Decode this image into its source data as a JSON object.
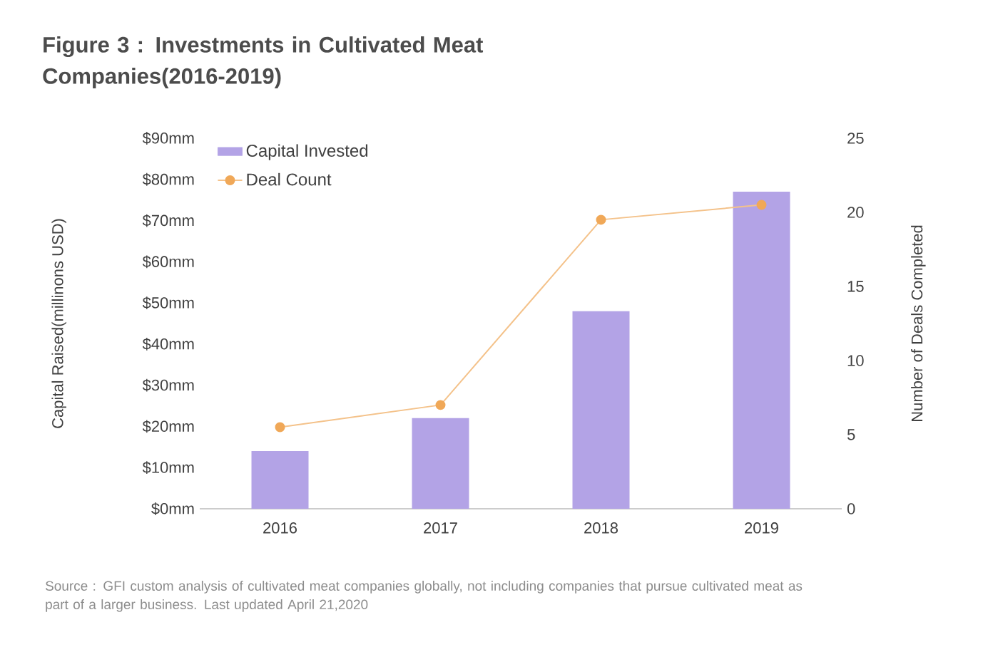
{
  "chart_data": {
    "type": "bar",
    "title": "Figure 3 : Investments in Cultivated Meat Companies(2016-2019)",
    "categories": [
      "2016",
      "2017",
      "2018",
      "2019"
    ],
    "ylabel": "Capital Raised(millinons USD)",
    "y2label": "Number of Deals Completed",
    "series": [
      {
        "name": "Capital Invested",
        "color": "#b3a3e6",
        "values": [
          14,
          22,
          48,
          77
        ]
      },
      {
        "name": "Deal Count",
        "type": "line",
        "axis": "y2",
        "color": "#f0a858",
        "marker": "circle",
        "values": [
          5.5,
          7,
          19.5,
          20.5
        ]
      }
    ],
    "ylim": [
      0,
      90
    ],
    "yticks": [
      {
        "value": 0,
        "label": "$0mm"
      },
      {
        "value": 10,
        "label": "$10mm"
      },
      {
        "value": 20,
        "label": "$20mm"
      },
      {
        "value": 30,
        "label": "$30mm"
      },
      {
        "value": 40,
        "label": "$40mm"
      },
      {
        "value": 50,
        "label": "$50mm"
      },
      {
        "value": 60,
        "label": "$60mm"
      },
      {
        "value": 70,
        "label": "$70mm"
      },
      {
        "value": 80,
        "label": "$80mm"
      },
      {
        "value": 90,
        "label": "$90mm"
      }
    ],
    "y2lim": [
      0,
      25
    ],
    "y2ticks": [
      0,
      5,
      10,
      15,
      20,
      25
    ],
    "legend": "top left",
    "grid": false,
    "annotations": [
      "Source : GFI custom analysis of cultivated meat companies globally, not including companies that pursue cultivated meat as part of a larger business. Last updated April 21,2020"
    ]
  }
}
